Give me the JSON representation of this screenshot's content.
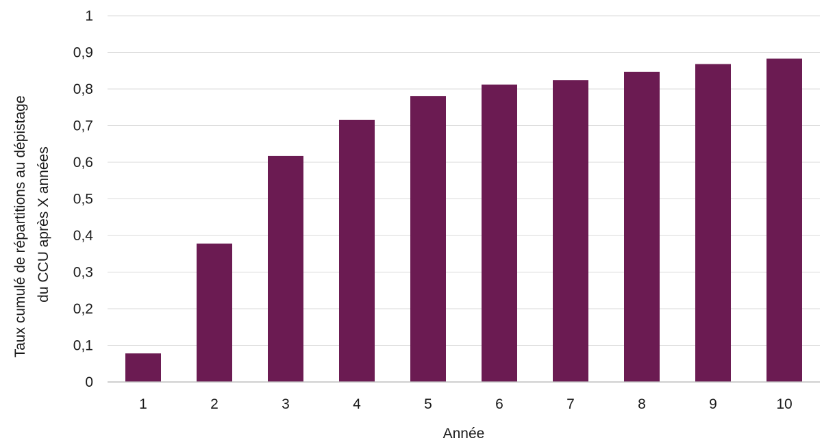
{
  "chart_data": {
    "type": "bar",
    "title": "",
    "xlabel": "Année",
    "ylabel_lines": [
      "Taux cumulé de répartitions au dépistage",
      "du CCU après X années"
    ],
    "categories": [
      "1",
      "2",
      "3",
      "4",
      "5",
      "6",
      "7",
      "8",
      "9",
      "10"
    ],
    "values": [
      0.078,
      0.378,
      0.617,
      0.716,
      0.781,
      0.812,
      0.824,
      0.847,
      0.868,
      0.883
    ],
    "ylim": [
      0,
      1
    ],
    "yticks": [
      0,
      0.1,
      0.2,
      0.3,
      0.4,
      0.5,
      0.6,
      0.7,
      0.8,
      0.9,
      1
    ],
    "ytick_labels": [
      "0",
      "0,1",
      "0,2",
      "0,3",
      "0,4",
      "0,5",
      "0,6",
      "0,7",
      "0,8",
      "0,9",
      "1"
    ],
    "grid": true,
    "legend": "none",
    "colors": {
      "bar": "#6B1B52",
      "grid": "#d9d9d9",
      "axis": "#bfbfbf"
    }
  }
}
